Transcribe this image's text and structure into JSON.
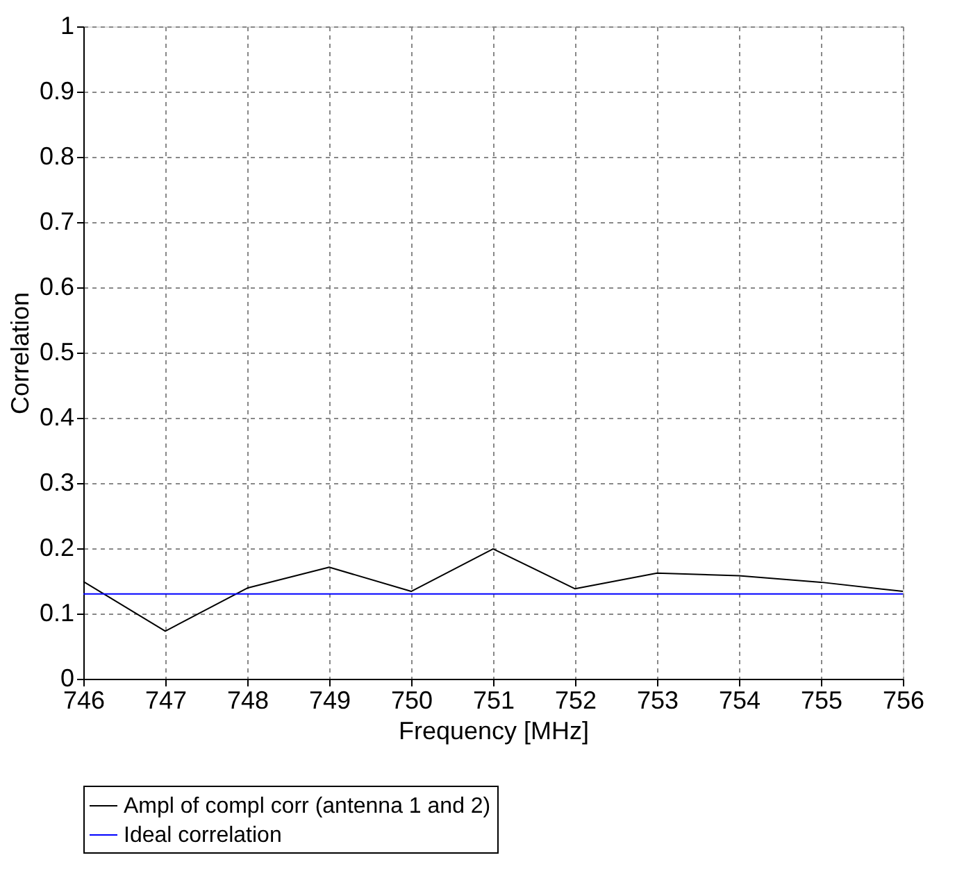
{
  "chart_data": {
    "type": "line",
    "xlabel": "Frequency [MHz]",
    "ylabel": "Correlation",
    "xlim": [
      746,
      756
    ],
    "xticks": [
      746,
      747,
      748,
      749,
      750,
      751,
      752,
      753,
      754,
      755,
      756
    ],
    "ylim": [
      0,
      1
    ],
    "yticks": [
      0,
      0.1,
      0.2,
      0.3,
      0.4,
      0.5,
      0.6,
      0.7,
      0.8,
      0.9,
      1
    ],
    "grid": true,
    "legend": "bottom",
    "marker": "none",
    "line_style": "solid",
    "series": [
      {
        "name": "Ampl of compl corr (antenna 1 and 2)",
        "color": "#000000",
        "x": [
          746,
          747,
          748,
          749,
          750,
          751,
          752,
          753,
          754,
          755,
          756
        ],
        "values": [
          0.149,
          0.073,
          0.139,
          0.171,
          0.134,
          0.199,
          0.138,
          0.162,
          0.158,
          0.148,
          0.134
        ]
      },
      {
        "name": "Ideal correlation",
        "color": "#0000ff",
        "x": [
          746,
          756
        ],
        "values": [
          0.13,
          0.13
        ]
      }
    ]
  }
}
